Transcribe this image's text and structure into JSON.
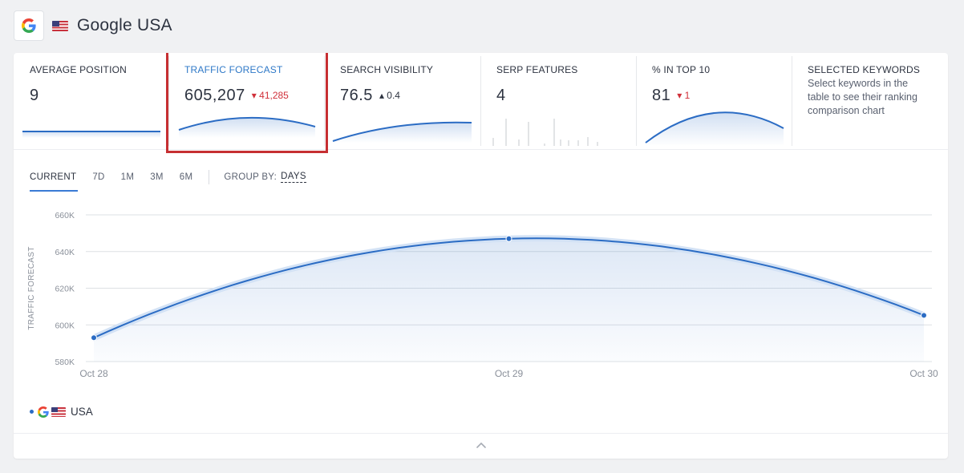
{
  "header": {
    "title": "Google USA",
    "engine_icon": "google-g-icon",
    "flag_icon": "us-flag-icon"
  },
  "metrics": [
    {
      "label": "AVERAGE POSITION",
      "value": "9",
      "delta": "",
      "trend": "flat"
    },
    {
      "label": "TRAFFIC FORECAST",
      "value": "605,207",
      "delta": "41,285",
      "trend": "down",
      "label_color": "#2e78c7"
    },
    {
      "label": "SEARCH VISIBILITY",
      "value": "76.5",
      "delta": "0.4",
      "trend": "up"
    },
    {
      "label": "SERP FEATURES",
      "value": "4",
      "delta": "",
      "trend": "none"
    },
    {
      "label": "% IN TOP 10",
      "value": "81",
      "delta": "1",
      "trend": "down"
    },
    {
      "label": "SELECTED KEYWORDS",
      "description": "Select keywords in the table to see their ranking comparison chart"
    }
  ],
  "tabs": {
    "items": [
      "CURRENT",
      "7D",
      "1M",
      "3M",
      "6M"
    ],
    "active": "CURRENT",
    "group_by_label": "GROUP BY:",
    "group_by_value": "DAYS"
  },
  "chart_data": {
    "type": "area",
    "ylabel": "TRAFFIC FORECAST",
    "xlabel": "",
    "categories": [
      "Oct 28",
      "Oct 29",
      "Oct 30"
    ],
    "values": [
      593000,
      647000,
      605207
    ],
    "ylim": [
      580000,
      660000
    ],
    "yticks": [
      "660K",
      "640K",
      "620K",
      "600K",
      "580K"
    ],
    "grid": true,
    "color": "#2b6cc4"
  },
  "legend": {
    "label": "USA"
  },
  "colors": {
    "accent": "#2b6cc4",
    "down": "#d0303a",
    "highlight": "#c62f32"
  }
}
